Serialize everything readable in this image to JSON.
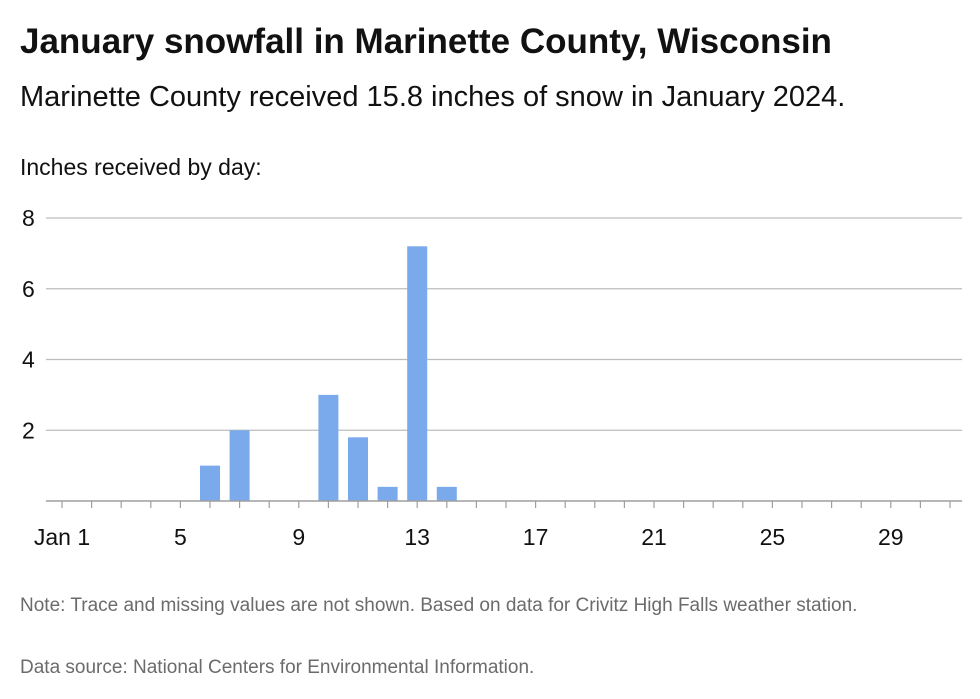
{
  "header": {
    "title": "January snowfall in Marinette County, Wisconsin",
    "subtitle": "Marinette County received 15.8 inches of snow in January 2024."
  },
  "footer": {
    "note": "Note: Trace and missing values are not shown. Based on data for Crivitz High Falls weather station.",
    "source": "Data source: National Centers for Environmental Information."
  },
  "chart_data": {
    "type": "bar",
    "title": "January snowfall in Marinette County, Wisconsin",
    "subtitle": "Marinette County received 15.8 inches of snow in January 2024.",
    "ylabel": "Inches received by day:",
    "xlabel": "",
    "ylim": [
      0,
      8
    ],
    "yticks": [
      2,
      4,
      6,
      8
    ],
    "xlim": [
      1,
      31
    ],
    "xticks": [
      1,
      5,
      9,
      13,
      17,
      21,
      25,
      29
    ],
    "xtick_labels": [
      "Jan 1",
      "5",
      "9",
      "13",
      "17",
      "21",
      "25",
      "29"
    ],
    "grid": "horizontal",
    "bar_color": "#7aaaeb",
    "x": [
      6,
      7,
      10,
      11,
      12,
      13,
      14
    ],
    "values": [
      1.0,
      2.0,
      3.0,
      1.8,
      0.4,
      7.2,
      0.4
    ]
  }
}
